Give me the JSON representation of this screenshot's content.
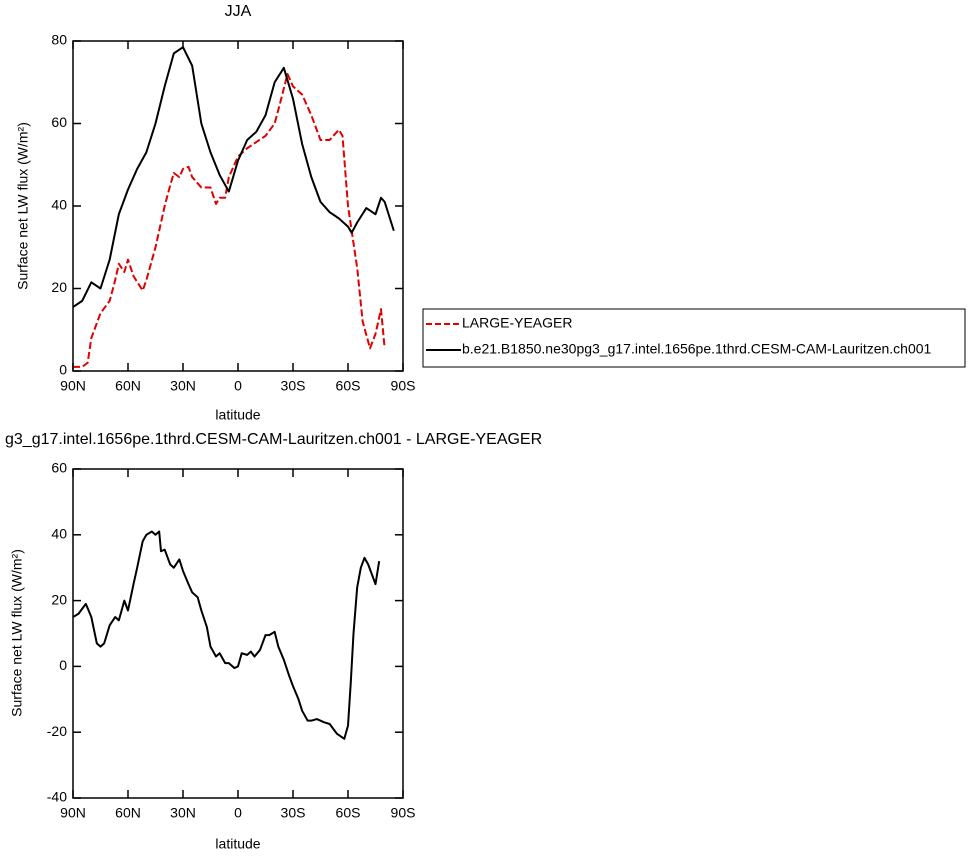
{
  "chart_data": [
    {
      "type": "line",
      "title": "JJA",
      "xlabel": "latitude",
      "ylabel": "Surface net LW flux (W/m²)",
      "xlim": [
        90,
        -90
      ],
      "xticks": [
        {
          "value": 90,
          "label": "90N"
        },
        {
          "value": 60,
          "label": "60N"
        },
        {
          "value": 30,
          "label": "30N"
        },
        0,
        {
          "value": -30,
          "label": "30S"
        },
        {
          "value": -60,
          "label": "60S"
        },
        {
          "value": -90,
          "label": "90S"
        }
      ],
      "ylim": [
        0,
        80
      ],
      "yticks": [
        0,
        20,
        40,
        60,
        80
      ],
      "legend": "outside-right",
      "series": [
        {
          "name": "LARGE-YEAGER",
          "color": "#e00000",
          "dashed": true,
          "x": [
            90,
            85,
            82,
            80,
            75,
            70,
            67,
            65,
            62,
            60,
            57,
            52,
            50,
            45,
            40,
            37,
            35,
            32,
            30,
            27,
            25,
            20,
            15,
            12,
            10,
            7,
            5,
            0,
            -5,
            -10,
            -15,
            -20,
            -23,
            -27,
            -30,
            -35,
            -40,
            -45,
            -50,
            -55,
            -57,
            -60,
            -65,
            -68,
            -72,
            -75,
            -78,
            -80
          ],
          "values": [
            1,
            1,
            2,
            8,
            14,
            17,
            22,
            26,
            24,
            27,
            23,
            19.5,
            22,
            30,
            40,
            45,
            48,
            47,
            49,
            49.5,
            47,
            44.5,
            44.5,
            40.5,
            42,
            42,
            47,
            52,
            54,
            55.5,
            57,
            60,
            65,
            72,
            69,
            67,
            62,
            56,
            56,
            58.5,
            57,
            40,
            25,
            12,
            5.5,
            9,
            15,
            5.5
          ]
        },
        {
          "name": "b.e21.B1850.ne30pg3_g17.intel.1656pe.1thrd.CESM-CAM-Lauritzen.ch001",
          "color": "#000000",
          "dashed": false,
          "x": [
            90,
            85,
            80,
            75,
            70,
            65,
            60,
            55,
            50,
            45,
            40,
            35,
            30,
            25,
            20,
            15,
            10,
            5,
            0,
            -5,
            -10,
            -15,
            -20,
            -25,
            -30,
            -35,
            -40,
            -45,
            -50,
            -55,
            -60,
            -62,
            -65,
            -70,
            -75,
            -78,
            -80,
            -85
          ],
          "values": [
            15.5,
            17,
            21.5,
            20,
            27,
            38,
            44,
            49,
            53,
            60,
            69,
            77,
            78.5,
            74,
            60,
            53,
            47.5,
            43.5,
            51,
            56,
            58,
            62,
            70,
            73.5,
            66,
            55,
            47,
            41,
            38.5,
            37,
            35,
            33.5,
            36,
            39.5,
            38,
            42,
            41,
            34
          ]
        }
      ]
    },
    {
      "type": "line",
      "title": "g3_g17.intel.1656pe.1thrd.CESM-CAM-Lauritzen.ch001 - LARGE-YEAGER",
      "xlabel": "latitude",
      "ylabel": "Surface net LW flux (W/m²)",
      "xlim": [
        90,
        -90
      ],
      "xticks": [
        {
          "value": 90,
          "label": "90N"
        },
        {
          "value": 60,
          "label": "60N"
        },
        {
          "value": 30,
          "label": "30N"
        },
        0,
        {
          "value": -30,
          "label": "30S"
        },
        {
          "value": -60,
          "label": "60S"
        },
        {
          "value": -90,
          "label": "90S"
        }
      ],
      "ylim": [
        -40,
        60
      ],
      "yticks": [
        -40,
        -20,
        0,
        20,
        40,
        60
      ],
      "series": [
        {
          "color": "#000000",
          "dashed": false,
          "x": [
            90,
            87,
            83,
            80,
            77,
            75,
            73,
            70,
            67,
            65,
            62,
            60,
            57,
            55,
            52,
            50,
            47,
            45,
            43,
            42,
            40,
            37,
            35,
            32,
            30,
            27,
            25,
            22,
            20,
            17,
            15,
            12,
            10,
            7,
            5,
            2,
            0,
            -2,
            -5,
            -7,
            -9,
            -12,
            -15,
            -17,
            -20,
            -22,
            -25,
            -28,
            -30,
            -33,
            -35,
            -38,
            -40,
            -43,
            -47,
            -50,
            -54,
            -58,
            -60,
            -61.5,
            -63,
            -65,
            -67,
            -69,
            -71,
            -73,
            -75,
            -77
          ],
          "values": [
            15,
            16,
            19,
            15,
            7,
            6,
            7,
            12.5,
            15,
            14,
            20,
            17,
            25,
            30,
            38,
            40,
            41,
            40,
            41,
            35,
            35.5,
            31,
            30,
            32.5,
            29,
            25,
            22.5,
            21,
            17,
            12,
            6,
            3,
            4,
            1,
            1,
            -0.5,
            0,
            4,
            3.5,
            4.5,
            3,
            5,
            9.5,
            9.5,
            10.5,
            6,
            2,
            -3,
            -6,
            -10,
            -13.5,
            -16.5,
            -16.5,
            -16,
            -17,
            -17.5,
            -20.5,
            -22,
            -18,
            -5,
            10,
            24,
            30,
            33,
            31,
            28,
            25,
            32
          ]
        }
      ]
    }
  ]
}
